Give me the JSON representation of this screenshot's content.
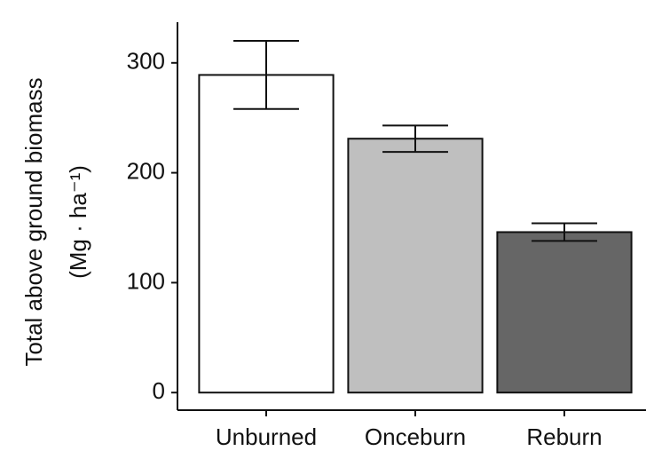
{
  "chart_data": {
    "type": "bar",
    "ylabel": [
      "Total above ground biomass",
      "(Mg · ha⁻¹)"
    ],
    "categories": [
      "Unburned",
      "Onceburn",
      "Reburn"
    ],
    "values": [
      289,
      231,
      146
    ],
    "errors": [
      31,
      12,
      8
    ],
    "colors": [
      "#ffffff",
      "#bfbfbf",
      "#666666"
    ],
    "ylim": [
      -16,
      337
    ],
    "yticks": [
      0,
      100,
      200,
      300
    ],
    "grid": false
  }
}
